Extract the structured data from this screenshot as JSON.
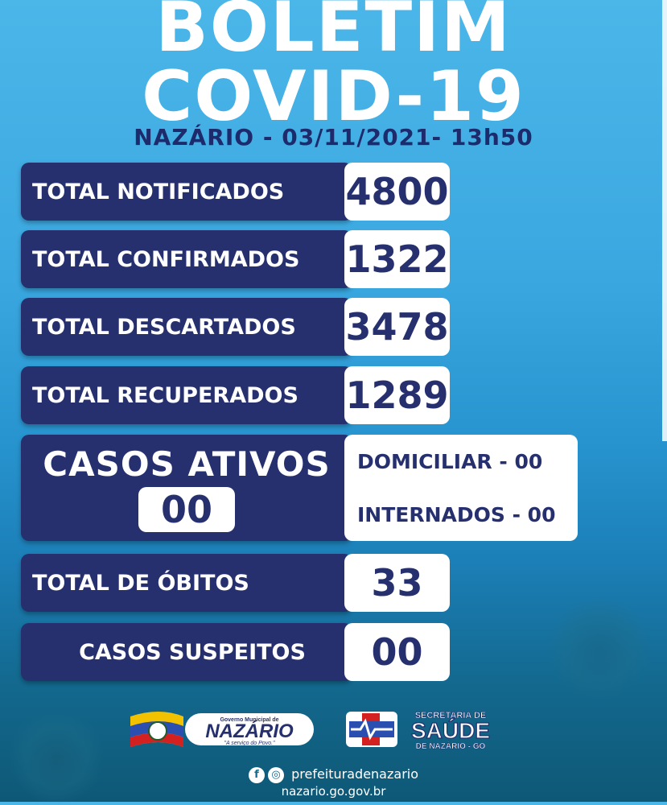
{
  "header": {
    "title_line1": "BOLETIM",
    "title_line2": "COVID-19",
    "subtitle": "NAZÁRIO - 03/11/2021- 13h50"
  },
  "stats": [
    {
      "label": "TOTAL NOTIFICADOS",
      "value": "4800"
    },
    {
      "label": "TOTAL CONFIRMADOS",
      "value": "1322"
    },
    {
      "label": "TOTAL DESCARTADOS",
      "value": "3478"
    },
    {
      "label": "TOTAL RECUPERADOS",
      "value": "1289"
    }
  ],
  "active": {
    "label": "CASOS ATIVOS",
    "count": "00",
    "domiciliar": "DOMICILIAR - 00",
    "internados": "INTERNADOS - 00"
  },
  "obitos": {
    "label": "TOTAL DE ÓBITOS",
    "value": "33"
  },
  "suspeitos": {
    "label": "CASOS SUSPEITOS",
    "value": "00"
  },
  "footer": {
    "nazario_logo_top": "Governo Municipal de",
    "nazario_logo_name": "NAZÁRIO",
    "nazario_logo_slogan": "\"A serviço do Povo.\"",
    "saude_top": "SECRETARIA DE",
    "saude_name": "SAÚDE",
    "saude_bottom": "DE NAZÁRIO - GO",
    "social_handle": "prefeituradenazario",
    "website": "nazario.go.gov.br"
  },
  "colors": {
    "navy": "#26306e",
    "sky": "#3aa7e0",
    "white": "#ffffff"
  }
}
